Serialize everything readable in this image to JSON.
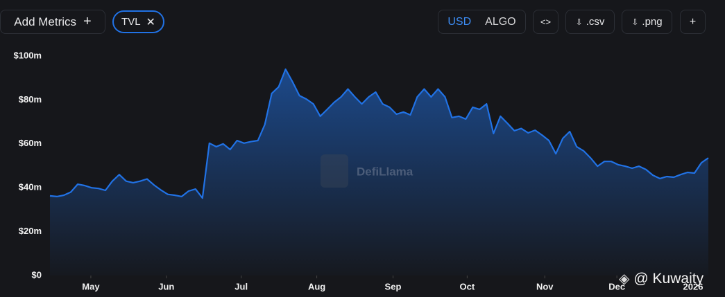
{
  "toolbar": {
    "add_metrics": "Add Metrics",
    "metric": "TVL",
    "currencies": [
      "USD",
      "ALGO"
    ],
    "downloads": [
      ".csv",
      ".png"
    ]
  },
  "watermark": "DefiLlama",
  "credit": "@ Kuwaity",
  "chart_data": {
    "type": "area",
    "color": "#2172e5",
    "values": [
      36.3,
      36,
      36.6,
      38,
      41.6,
      41,
      40,
      39.7,
      38.8,
      43,
      46,
      43,
      42.3,
      43,
      44,
      41.3,
      39,
      37,
      36.6,
      36,
      38.5,
      39.4,
      35.3,
      60.3,
      58.7,
      60,
      57.4,
      61.5,
      60.3,
      61,
      61.5,
      68.8,
      83,
      86,
      94,
      88.3,
      82,
      80.4,
      78.2,
      72.6,
      75.7,
      78.9,
      81.4,
      85,
      81.4,
      78.2,
      81.4,
      83.6,
      78.2,
      76.7,
      73.5,
      74.5,
      73.2,
      81.4,
      85,
      81.4,
      85,
      81.4,
      72,
      72.6,
      71.3,
      76.7,
      75.7,
      78.2,
      64.7,
      72.6,
      69.4,
      66,
      67,
      65,
      66.2,
      64,
      61.5,
      55.5,
      62.5,
      65.6,
      58.7,
      56.8,
      53.6,
      49.8,
      52,
      52,
      50.5,
      49.8,
      48.9,
      49.8,
      48.3,
      45.7,
      44.2,
      45.1,
      44.8,
      46,
      47,
      46.7,
      51.4,
      53.6
    ],
    "xlim": [
      0,
      95
    ],
    "xticks": [
      {
        "value": 5.9,
        "label": "May"
      },
      {
        "value": 16.8,
        "label": "Jun"
      },
      {
        "value": 27.6,
        "label": "Jul"
      },
      {
        "value": 38.5,
        "label": "Aug"
      },
      {
        "value": 49.5,
        "label": "Sep"
      },
      {
        "value": 60.2,
        "label": "Oct"
      },
      {
        "value": 71.4,
        "label": "Nov"
      },
      {
        "value": 81.8,
        "label": "Dec"
      },
      {
        "value": 92.8,
        "label": "2026"
      }
    ],
    "ylim": [
      0,
      100
    ],
    "yticks": [
      {
        "value": 0,
        "label": "$0"
      },
      {
        "value": 20,
        "label": "$20m"
      },
      {
        "value": 40,
        "label": "$40m"
      },
      {
        "value": 60,
        "label": "$60m"
      },
      {
        "value": 80,
        "label": "$80m"
      },
      {
        "value": 100,
        "label": "$100m"
      }
    ]
  }
}
